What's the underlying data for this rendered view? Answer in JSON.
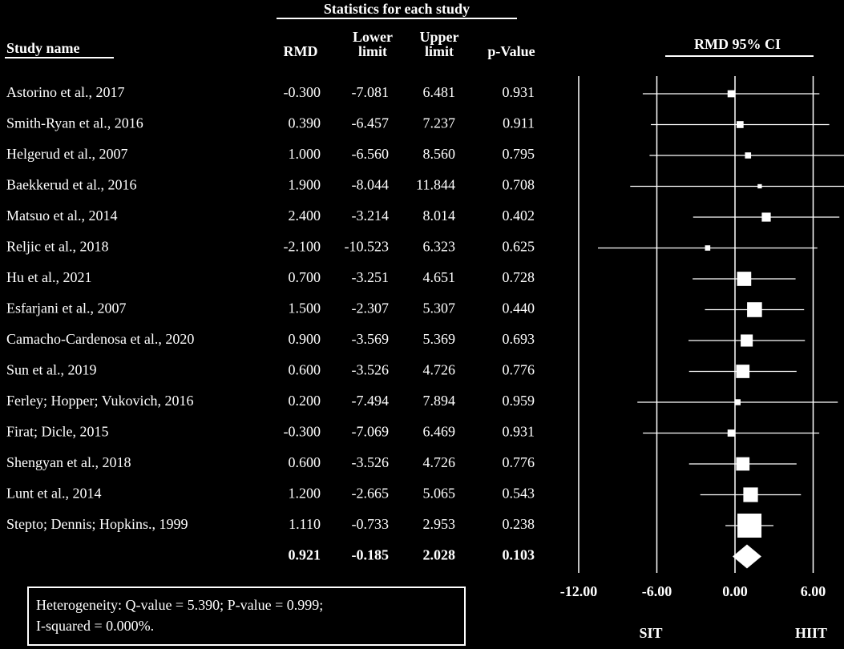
{
  "chart_data": {
    "type": "forest",
    "title": "Statistics  for each study",
    "study_header": "Study name",
    "rmd_header": "RMD",
    "lower_header": [
      "Lower",
      "limit"
    ],
    "upper_header": [
      "Upper",
      "limit"
    ],
    "p_header": "p-Value",
    "plot_title": "RMD 95% CI",
    "categories": [
      "Astorino et al., 2017",
      "Smith-Ryan et al., 2016",
      "Helgerud et al., 2007",
      "Baekkerud et al., 2016",
      "Matsuo et al., 2014",
      "Reljic et al., 2018",
      "Hu et al., 2021",
      "Esfarjani et al., 2007",
      "Camacho-Cardenosa et al., 2020",
      "Sun et al., 2019",
      "Ferley; Hopper;  Vukovich, 2016",
      "Firat; Dicle,  2015",
      "Shengyan et al., 2018",
      "Lunt et al., 2014",
      "Stepto; Dennis; Hopkins.,  1999"
    ],
    "values": [
      -0.3,
      0.39,
      1,
      1.9,
      2.4,
      -2.1,
      0.7,
      1.5,
      0.9,
      0.6,
      0.2,
      -0.3,
      0.6,
      1.2,
      1.11
    ],
    "value_labels": [
      "-0.300",
      "0.390",
      "1.000",
      "1.900",
      "2.400",
      "-2.100",
      "0.700",
      "1.500",
      "0.900",
      "0.600",
      "0.200",
      "-0.300",
      "0.600",
      "1.200",
      "1.110"
    ],
    "lower": [
      -7.081,
      -6.457,
      -6.56,
      -8.044,
      -3.214,
      -10.523,
      -3.251,
      -2.307,
      -3.569,
      -3.526,
      -7.494,
      -7.069,
      -3.526,
      -2.665,
      -0.733
    ],
    "lower_labels": [
      "-7.081",
      "-6.457",
      "-6.560",
      "-8.044",
      "-3.214",
      "-10.523",
      "-3.251",
      "-2.307",
      "-3.569",
      "-3.526",
      "-7.494",
      "-7.069",
      "-3.526",
      "-2.665",
      "-0.733"
    ],
    "upper": [
      6.481,
      7.237,
      8.56,
      11.844,
      8.014,
      6.323,
      4.651,
      5.307,
      5.369,
      4.726,
      7.894,
      6.469,
      4.726,
      5.065,
      2.953
    ],
    "upper_labels": [
      "6.481",
      "7.237",
      "8.560",
      "11.844",
      "8.014",
      "6.323",
      "4.651",
      "5.307",
      "5.369",
      "4.726",
      "7.894",
      "6.469",
      "4.726",
      "5.065",
      "2.953"
    ],
    "p_values": [
      0.931,
      0.911,
      0.795,
      0.708,
      0.402,
      0.625,
      0.728,
      0.44,
      0.693,
      0.776,
      0.959,
      0.931,
      0.776,
      0.543,
      0.238
    ],
    "p_labels": [
      "0.931",
      "0.911",
      "0.795",
      "0.708",
      "0.402",
      "0.625",
      "0.728",
      "0.440",
      "0.693",
      "0.776",
      "0.959",
      "0.931",
      "0.776",
      "0.543",
      "0.238"
    ],
    "summary": {
      "value": 0.921,
      "lower": -0.185,
      "upper": 2.028,
      "p": 0.103
    },
    "xlim": [
      -12,
      8.4
    ],
    "xticks": [
      {
        "value": -12,
        "label": "-12.00"
      },
      {
        "value": -6,
        "label": "-6.00"
      },
      {
        "value": 0,
        "label": "0.00"
      },
      {
        "value": 6,
        "label": "6.00"
      }
    ],
    "grid": true,
    "left_label": "SIT",
    "right_label": "HIIT",
    "heterogeneity": [
      "Heterogeneity: Q-value = 5.390; P-value = 0.999;",
      "I-squared = 0.000%."
    ],
    "color": "#ffffff"
  }
}
